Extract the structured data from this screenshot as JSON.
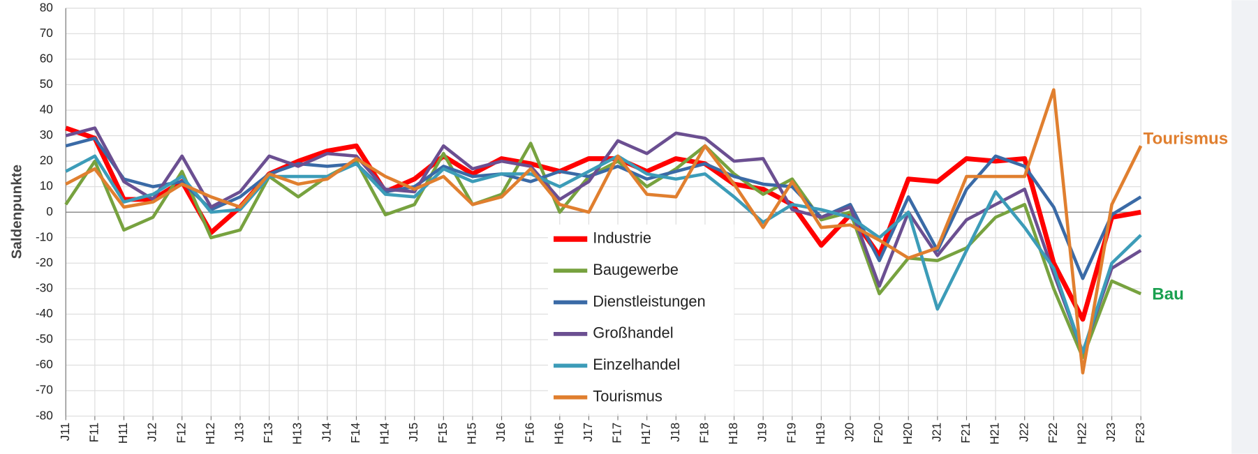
{
  "chart_data": {
    "type": "line",
    "y_label": "Saldenpunkte",
    "categories": [
      "J11",
      "F11",
      "H11",
      "J12",
      "F12",
      "H12",
      "J13",
      "F13",
      "H13",
      "J14",
      "F14",
      "H14",
      "J15",
      "F15",
      "H15",
      "J16",
      "F16",
      "H16",
      "J17",
      "F17",
      "H17",
      "J18",
      "F18",
      "H18",
      "J19",
      "F19",
      "H19",
      "J20",
      "F20",
      "H20",
      "J21",
      "F21",
      "H21",
      "J22",
      "F22",
      "H22",
      "J23",
      "F23"
    ],
    "series": [
      {
        "name": "Industrie",
        "color": "#ff0000",
        "values": [
          33,
          29,
          5,
          5,
          12,
          -8,
          2,
          15,
          20,
          24,
          26,
          8,
          13,
          22,
          15,
          21,
          19,
          16,
          21,
          21,
          16,
          21,
          19,
          11,
          9,
          3,
          -13,
          -1,
          -17,
          13,
          12,
          21,
          20,
          21,
          -20,
          -42,
          -2,
          0
        ]
      },
      {
        "name": "Baugewerbe",
        "color": "#77a23f",
        "values": [
          3,
          20,
          -7,
          -2,
          16,
          -10,
          -7,
          14,
          6,
          14,
          20,
          -1,
          3,
          23,
          3,
          7,
          27,
          0,
          14,
          20,
          10,
          17,
          26,
          15,
          7,
          13,
          -3,
          0,
          -32,
          -18,
          -19,
          -14,
          -2,
          3,
          -30,
          -57,
          -27,
          -32
        ]
      },
      {
        "name": "Dienstleistungen",
        "color": "#3a6aa6",
        "values": [
          26,
          29,
          13,
          10,
          12,
          1,
          6,
          15,
          19,
          18,
          19,
          8,
          10,
          18,
          14,
          15,
          12,
          16,
          14,
          18,
          13,
          16,
          19,
          14,
          11,
          10,
          -2,
          3,
          -19,
          6,
          -15,
          9,
          22,
          18,
          2,
          -26,
          -1,
          6
        ]
      },
      {
        "name": "Großhandel",
        "color": "#6b4f91",
        "values": [
          30,
          33,
          12,
          5,
          22,
          2,
          8,
          22,
          18,
          23,
          22,
          9,
          8,
          26,
          17,
          20,
          18,
          5,
          12,
          28,
          23,
          31,
          29,
          20,
          21,
          1,
          -2,
          2,
          -29,
          0,
          -17,
          -3,
          3,
          9,
          -24,
          -55,
          -22,
          -15
        ]
      },
      {
        "name": "Einzelhandel",
        "color": "#3c9cb8",
        "values": [
          16,
          22,
          4,
          7,
          14,
          0,
          1,
          14,
          14,
          14,
          19,
          7,
          6,
          17,
          12,
          15,
          15,
          10,
          16,
          22,
          15,
          13,
          15,
          6,
          -4,
          3,
          1,
          -2,
          -10,
          0,
          -38,
          -15,
          8,
          -6,
          -22,
          -55,
          -20,
          -9
        ]
      },
      {
        "name": "Tourismus",
        "color": "#e07f2f",
        "values": [
          11,
          17,
          2,
          4,
          11,
          6,
          2,
          15,
          11,
          13,
          21,
          14,
          9,
          14,
          3,
          6,
          17,
          3,
          0,
          22,
          7,
          6,
          26,
          11,
          -6,
          12,
          -6,
          -5,
          -11,
          -18,
          -14,
          14,
          14,
          14,
          48,
          -63,
          3,
          26
        ]
      }
    ],
    "annotations": [
      {
        "text": "Tourismus",
        "color": "#e07f2f"
      },
      {
        "text": "Bau",
        "color": "#1aa050"
      }
    ],
    "ylim": [
      -80,
      80
    ],
    "yticks": [
      -80,
      -70,
      -60,
      -50,
      -40,
      -30,
      -20,
      -10,
      0,
      10,
      20,
      30,
      40,
      50,
      60,
      70,
      80
    ],
    "grid": true
  }
}
